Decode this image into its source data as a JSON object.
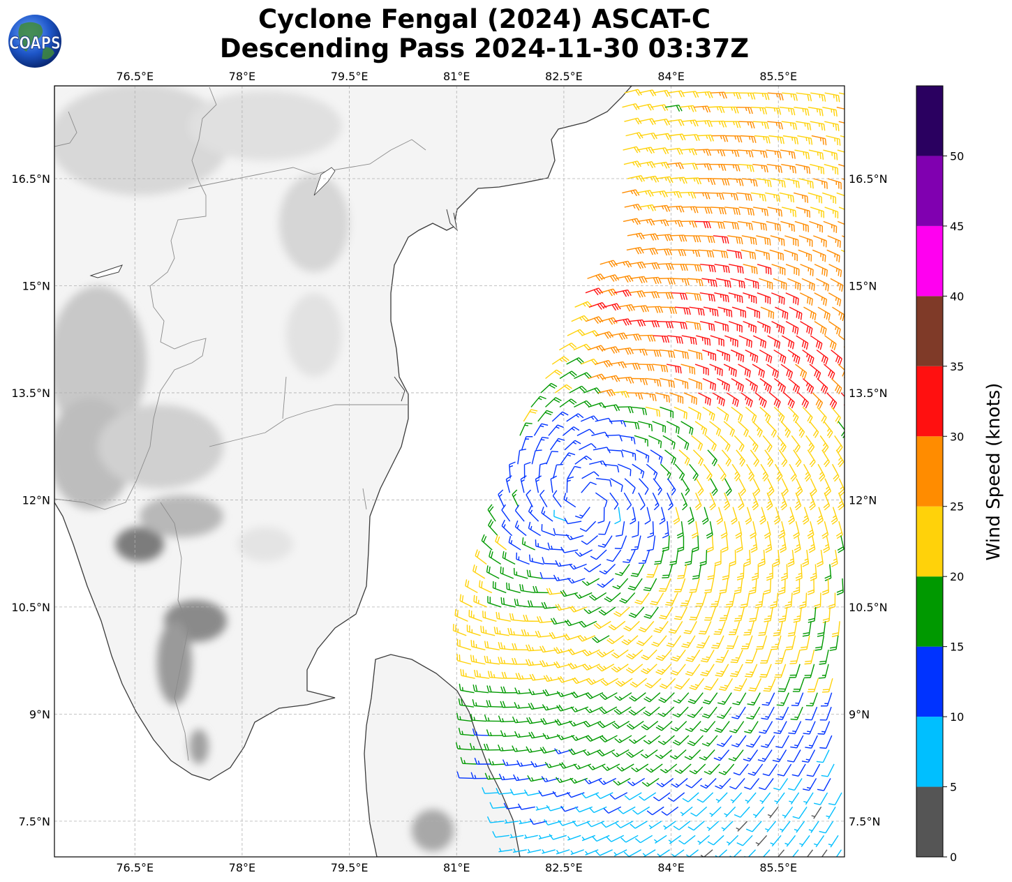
{
  "title": {
    "line1": "Cyclone Fengal (2024) ASCAT-C",
    "line2": "Descending Pass 2024-11-30 03:37Z"
  },
  "logo": {
    "text": "COAPS",
    "icon": "globe-icon"
  },
  "map": {
    "lon_range": [
      75.375,
      86.425
    ],
    "lat_range": [
      7.0,
      17.8
    ],
    "lon_ticks": [
      76.5,
      78,
      79.5,
      81,
      82.5,
      84,
      85.5
    ],
    "lon_labels": [
      "76.5°E",
      "78°E",
      "79.5°E",
      "81°E",
      "82.5°E",
      "84°E",
      "85.5°E"
    ],
    "lat_ticks": [
      7.5,
      9,
      10.5,
      12,
      13.5,
      15,
      16.5
    ],
    "lat_labels": [
      "7.5°N",
      "9°N",
      "10.5°N",
      "12°N",
      "13.5°N",
      "15°N",
      "16.5°N"
    ],
    "gridlines": "on",
    "basemap": "grayscale topography",
    "colors": {
      "coast": "#3a3a3a",
      "border": "#8a8a8a",
      "grid": "#b0b0b0"
    }
  },
  "colorbar": {
    "label": "Wind Speed (knots)",
    "ticks": [
      "0",
      "5",
      "10",
      "15",
      "20",
      "25",
      "30",
      "35",
      "40",
      "45",
      "50"
    ],
    "bins": [
      {
        "range": [
          0,
          5
        ],
        "color": "#555555"
      },
      {
        "range": [
          5,
          10
        ],
        "color": "#00bfff"
      },
      {
        "range": [
          10,
          15
        ],
        "color": "#0033ff"
      },
      {
        "range": [
          15,
          20
        ],
        "color": "#009900"
      },
      {
        "range": [
          20,
          25
        ],
        "color": "#ffd20a"
      },
      {
        "range": [
          25,
          30
        ],
        "color": "#ff8c00"
      },
      {
        "range": [
          30,
          35
        ],
        "color": "#ff1010"
      },
      {
        "range": [
          35,
          40
        ],
        "color": "#7f3a28"
      },
      {
        "range": [
          40,
          45
        ],
        "color": "#ff00f0"
      },
      {
        "range": [
          45,
          50
        ],
        "color": "#8000b0"
      },
      {
        "range": [
          50,
          55
        ],
        "color": "#2a0060"
      }
    ]
  },
  "chart_data": {
    "type": "wind_barbs",
    "units": "knots",
    "center_estimate": {
      "lon": 82.8,
      "lat": 12.0
    },
    "swath": {
      "west_edge_lon": [
        82.3,
        81.1,
        80.4
      ],
      "east_edge_lon": 86.4,
      "lat_span": [
        7.0,
        17.8
      ]
    },
    "sample_speeds": [
      {
        "lon": 83.2,
        "lat": 14.7,
        "kt": 32
      },
      {
        "lon": 84.8,
        "lat": 14.6,
        "kt": 27
      },
      {
        "lon": 85.8,
        "lat": 13.9,
        "kt": 28
      },
      {
        "lon": 83.5,
        "lat": 13.5,
        "kt": 22
      },
      {
        "lon": 84.0,
        "lat": 12.5,
        "kt": 17
      },
      {
        "lon": 84.0,
        "lat": 11.8,
        "kt": 13
      },
      {
        "lon": 82.0,
        "lat": 10.0,
        "kt": 17
      },
      {
        "lon": 81.8,
        "lat": 8.8,
        "kt": 13
      },
      {
        "lon": 82.5,
        "lat": 7.6,
        "kt": 8
      },
      {
        "lon": 85.0,
        "lat": 7.3,
        "kt": 8
      }
    ]
  }
}
